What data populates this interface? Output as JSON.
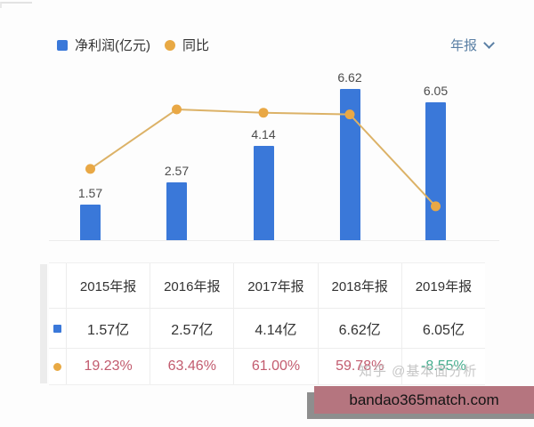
{
  "legend": {
    "bar": {
      "label": "净利润(亿元)",
      "color": "#3a78d9"
    },
    "line": {
      "label": "同比",
      "color": "#e8a944"
    }
  },
  "period_selector": {
    "label": "年报",
    "icon": "chevron-down"
  },
  "chart_data": {
    "type": "bar+line",
    "categories": [
      "2015年报",
      "2016年报",
      "2017年报",
      "2018年报",
      "2019年报"
    ],
    "series": [
      {
        "name": "净利润(亿元)",
        "type": "bar",
        "unit": "亿元",
        "values": [
          1.57,
          2.57,
          4.14,
          6.62,
          6.05
        ],
        "labels": [
          "1.57",
          "2.57",
          "4.14",
          "6.62",
          "6.05"
        ],
        "color": "#3a78d9"
      },
      {
        "name": "同比",
        "type": "line",
        "unit": "%",
        "values": [
          19.23,
          63.46,
          61.0,
          59.78,
          -8.55
        ],
        "labels": [
          "19.23%",
          "63.46%",
          "61.00%",
          "59.78%",
          "-8.55%"
        ],
        "color": "#e9a845",
        "line_color": "#dcb267"
      }
    ],
    "title": "",
    "xlabel": "",
    "ylabel": "",
    "grid": false,
    "legend_position": "top-left",
    "value_labels_shown": "bar-only"
  },
  "table": {
    "headers": [
      "2015年报",
      "2016年报",
      "2017年报",
      "2018年报",
      "2019年报"
    ],
    "rows": [
      {
        "legend_icon": "net-profit-bar-swatch",
        "cells": [
          "1.57亿",
          "2.57亿",
          "4.14亿",
          "6.62亿",
          "6.05亿"
        ]
      },
      {
        "legend_icon": "yoy-line-dot",
        "cells": [
          "19.23%",
          "63.46%",
          "61.00%",
          "59.78%",
          "-8.55%"
        ]
      }
    ],
    "positive_color": "#c25b6e",
    "negative_color": "#43ad8d"
  },
  "watermark": {
    "text": "知乎 @基本面分析"
  },
  "banner": {
    "text": "bandao365match.com",
    "bg": "#b5757f",
    "shadow": "#8e8e8e"
  }
}
